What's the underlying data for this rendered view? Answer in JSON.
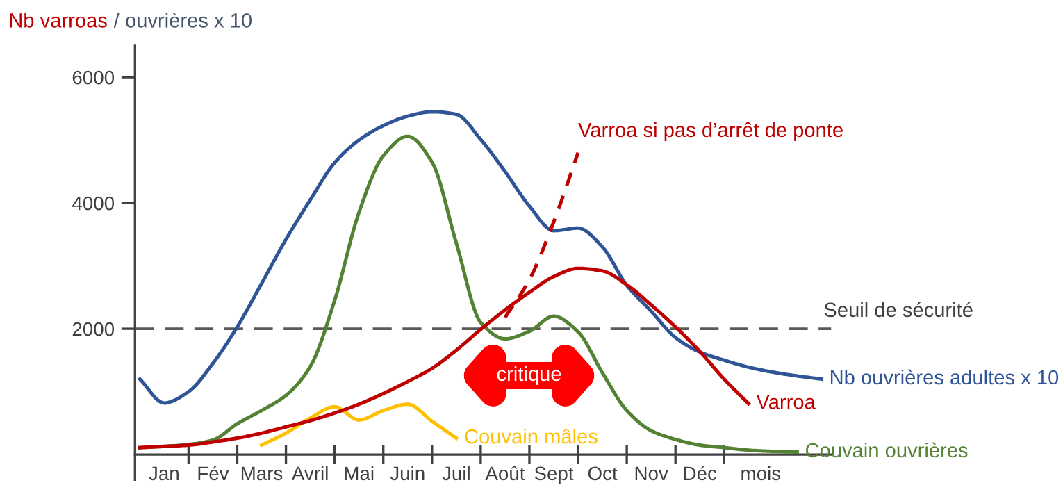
{
  "chart_data": {
    "type": "line",
    "ylabel": "Nb varroas / ouvrières x 10",
    "xlabel": "mois",
    "categories": [
      null,
      "Jan",
      null,
      "Fév",
      null,
      "Mars",
      null,
      "Avril",
      null,
      "Mai",
      null,
      "Juin",
      null,
      "Juil",
      null,
      "Août",
      null,
      "Sept",
      null,
      "Oct",
      null,
      "Nov",
      null,
      "Déc",
      null,
      null,
      null,
      null,
      null
    ],
    "ylim": [
      -400,
      6500
    ],
    "yticks": [
      2000,
      4000,
      6000
    ],
    "grid": false,
    "series": [
      {
        "name": "Nb ouvrières adultes x 10",
        "color": "#2f5597",
        "values": [
          1200,
          820,
          1000,
          1450,
          2030,
          2720,
          3420,
          4050,
          4640,
          5000,
          5230,
          5380,
          5450,
          5410,
          5010,
          4500,
          3950,
          3560,
          3600,
          3300,
          2690,
          2280,
          1860,
          1630,
          1500,
          1390,
          1310,
          1250,
          1200
        ]
      },
      {
        "name": "Couvain ouvrières",
        "color": "#548235",
        "values": [
          110,
          130,
          160,
          230,
          490,
          700,
          940,
          1400,
          2450,
          3850,
          4750,
          5060,
          4650,
          3360,
          2100,
          1840,
          1960,
          2200,
          1950,
          1300,
          700,
          380,
          240,
          150,
          110,
          70,
          50,
          40,
          null
        ]
      },
      {
        "name": "Couvain mâles",
        "color": "#ffc000",
        "values": [
          null,
          null,
          null,
          null,
          null,
          150,
          340,
          580,
          760,
          550,
          700,
          800,
          530,
          260,
          null,
          null,
          null,
          null,
          null,
          null,
          null,
          null,
          null,
          null,
          null,
          null,
          null,
          null,
          null
        ]
      },
      {
        "name": "Varroa",
        "color": "#c00000",
        "values": [
          110,
          130,
          150,
          200,
          260,
          340,
          440,
          540,
          660,
          800,
          970,
          1160,
          1370,
          1660,
          1990,
          2300,
          2580,
          2830,
          2960,
          2920,
          2700,
          2380,
          2030,
          1640,
          1200,
          810,
          null,
          null,
          null
        ]
      },
      {
        "name": "Varroa si pas d’arrêt de ponte",
        "color": "#c00000",
        "line_style": "dashed",
        "values": [
          null,
          null,
          null,
          null,
          null,
          null,
          null,
          null,
          null,
          null,
          null,
          null,
          null,
          null,
          null,
          2180,
          2780,
          3700,
          4800,
          null,
          null,
          null,
          null,
          null,
          null,
          null,
          null,
          null,
          null
        ]
      }
    ],
    "ref_lines": [
      {
        "axis": "y",
        "value": 2000,
        "label": "Seuil de sécurité",
        "color": "#595959",
        "line_style": "dashed"
      }
    ],
    "annotations": [
      "critique"
    ]
  }
}
